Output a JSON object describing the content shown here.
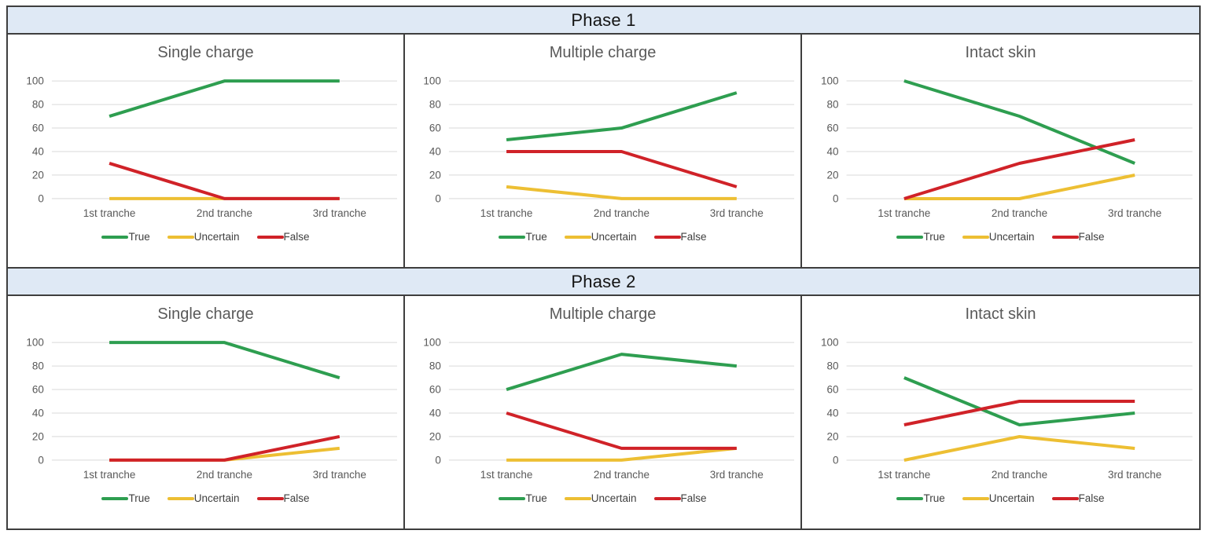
{
  "colors": {
    "true_series": "#2e9e50",
    "uncertain_series": "#edbf33",
    "false_series": "#d02228",
    "header_bg": "#dfe9f5",
    "border": "#3e3e3e",
    "gridline": "#d9d9d9",
    "axis_text": "#595959",
    "legend_text": "#404040",
    "title_text": "#595959"
  },
  "phase_headers": [
    "Phase 1",
    "Phase 2"
  ],
  "chart_data": [
    {
      "type": "line",
      "phase": "Phase 1",
      "title": "Single charge",
      "categories": [
        "1st tranche",
        "2nd tranche",
        "3rd tranche"
      ],
      "ylim": [
        0,
        100
      ],
      "yticks": [
        0,
        20,
        40,
        60,
        80,
        100
      ],
      "grid": "horizontal",
      "legend_position": "bottom",
      "series": [
        {
          "name": "True",
          "color": "#2e9e50",
          "values": [
            70,
            100,
            100
          ]
        },
        {
          "name": "Uncertain",
          "color": "#edbf33",
          "values": [
            0,
            0,
            0
          ]
        },
        {
          "name": "False",
          "color": "#d02228",
          "values": [
            30,
            0,
            0
          ]
        }
      ]
    },
    {
      "type": "line",
      "phase": "Phase 1",
      "title": "Multiple charge",
      "categories": [
        "1st tranche",
        "2nd tranche",
        "3rd tranche"
      ],
      "ylim": [
        0,
        100
      ],
      "yticks": [
        0,
        20,
        40,
        60,
        80,
        100
      ],
      "grid": "horizontal",
      "legend_position": "bottom",
      "series": [
        {
          "name": "True",
          "color": "#2e9e50",
          "values": [
            50,
            60,
            90
          ]
        },
        {
          "name": "Uncertain",
          "color": "#edbf33",
          "values": [
            10,
            0,
            0
          ]
        },
        {
          "name": "False",
          "color": "#d02228",
          "values": [
            40,
            40,
            10
          ]
        }
      ]
    },
    {
      "type": "line",
      "phase": "Phase 1",
      "title": "Intact skin",
      "categories": [
        "1st tranche",
        "2nd tranche",
        "3rd tranche"
      ],
      "ylim": [
        0,
        100
      ],
      "yticks": [
        0,
        20,
        40,
        60,
        80,
        100
      ],
      "grid": "horizontal",
      "legend_position": "bottom",
      "series": [
        {
          "name": "True",
          "color": "#2e9e50",
          "values": [
            100,
            70,
            30
          ]
        },
        {
          "name": "Uncertain",
          "color": "#edbf33",
          "values": [
            0,
            0,
            20
          ]
        },
        {
          "name": "False",
          "color": "#d02228",
          "values": [
            0,
            30,
            50
          ]
        }
      ]
    },
    {
      "type": "line",
      "phase": "Phase 2",
      "title": "Single charge",
      "categories": [
        "1st tranche",
        "2nd tranche",
        "3rd tranche"
      ],
      "ylim": [
        0,
        100
      ],
      "yticks": [
        0,
        20,
        40,
        60,
        80,
        100
      ],
      "grid": "horizontal",
      "legend_position": "bottom",
      "series": [
        {
          "name": "True",
          "color": "#2e9e50",
          "values": [
            100,
            100,
            70
          ]
        },
        {
          "name": "Uncertain",
          "color": "#edbf33",
          "values": [
            0,
            0,
            10
          ]
        },
        {
          "name": "False",
          "color": "#d02228",
          "values": [
            0,
            0,
            20
          ]
        }
      ]
    },
    {
      "type": "line",
      "phase": "Phase 2",
      "title": "Multiple charge",
      "categories": [
        "1st tranche",
        "2nd tranche",
        "3rd tranche"
      ],
      "ylim": [
        0,
        100
      ],
      "yticks": [
        0,
        20,
        40,
        60,
        80,
        100
      ],
      "grid": "horizontal",
      "legend_position": "bottom",
      "series": [
        {
          "name": "True",
          "color": "#2e9e50",
          "values": [
            60,
            90,
            80
          ]
        },
        {
          "name": "Uncertain",
          "color": "#edbf33",
          "values": [
            0,
            0,
            10
          ]
        },
        {
          "name": "False",
          "color": "#d02228",
          "values": [
            40,
            10,
            10
          ]
        }
      ]
    },
    {
      "type": "line",
      "phase": "Phase 2",
      "title": "Intact skin",
      "categories": [
        "1st tranche",
        "2nd tranche",
        "3rd tranche"
      ],
      "ylim": [
        0,
        100
      ],
      "yticks": [
        0,
        20,
        40,
        60,
        80,
        100
      ],
      "grid": "horizontal",
      "legend_position": "bottom",
      "series": [
        {
          "name": "True",
          "color": "#2e9e50",
          "values": [
            70,
            30,
            40
          ]
        },
        {
          "name": "Uncertain",
          "color": "#edbf33",
          "values": [
            0,
            20,
            10
          ]
        },
        {
          "name": "False",
          "color": "#d02228",
          "values": [
            30,
            50,
            50
          ]
        }
      ]
    }
  ]
}
